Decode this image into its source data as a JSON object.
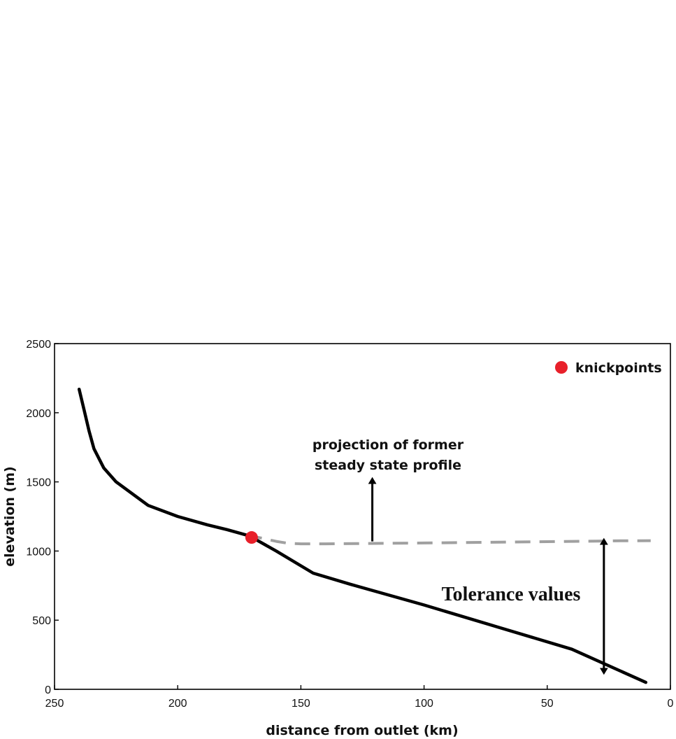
{
  "chart_data": {
    "type": "line",
    "title": "",
    "xlabel": "distance from outlet (km)",
    "ylabel": "elevation (m)",
    "xlim": [
      250,
      0
    ],
    "ylim": [
      0,
      2500
    ],
    "x_reversed": true,
    "x_ticks": [
      "250",
      "200",
      "150",
      "100",
      "50",
      "0"
    ],
    "y_ticks": [
      "0",
      "500",
      "1000",
      "1500",
      "2000",
      "2500"
    ],
    "grid": false,
    "legend_position": "top-right",
    "series": [
      {
        "style": "solid",
        "color": "#000000",
        "x": [
          240,
          238,
          236,
          234,
          230,
          225,
          212,
          200,
          188,
          180,
          172,
          170,
          160,
          145,
          130,
          100,
          70,
          40,
          10
        ],
        "y": [
          2170,
          2020,
          1870,
          1740,
          1600,
          1500,
          1330,
          1250,
          1190,
          1155,
          1115,
          1100,
          1000,
          840,
          760,
          610,
          450,
          290,
          50
        ]
      },
      {
        "style": "dashed",
        "color": "#a0a0a0",
        "x": [
          172,
          165,
          160,
          155,
          150,
          140,
          120,
          100,
          80,
          60,
          40,
          20,
          8
        ],
        "y": [
          1115,
          1090,
          1070,
          1055,
          1052,
          1052,
          1055,
          1058,
          1062,
          1066,
          1070,
          1074,
          1075
        ]
      }
    ],
    "points": [
      {
        "label": "knickpoints",
        "x": 170,
        "y": 1098,
        "color": "#e8202a"
      }
    ],
    "legend": [
      {
        "label": "knickpoints",
        "marker": "circle",
        "color": "#e8202a"
      }
    ],
    "annotations": [
      {
        "lines": [
          "projection of former",
          "steady state profile"
        ],
        "arrow_from": [
          121,
          1070
        ],
        "arrow_to": [
          121,
          1510
        ]
      },
      {
        "text": "Tolerance values",
        "arrow_from": [
          27,
          1070
        ],
        "arrow_to": [
          27,
          130
        ],
        "double_headed": true
      }
    ]
  }
}
